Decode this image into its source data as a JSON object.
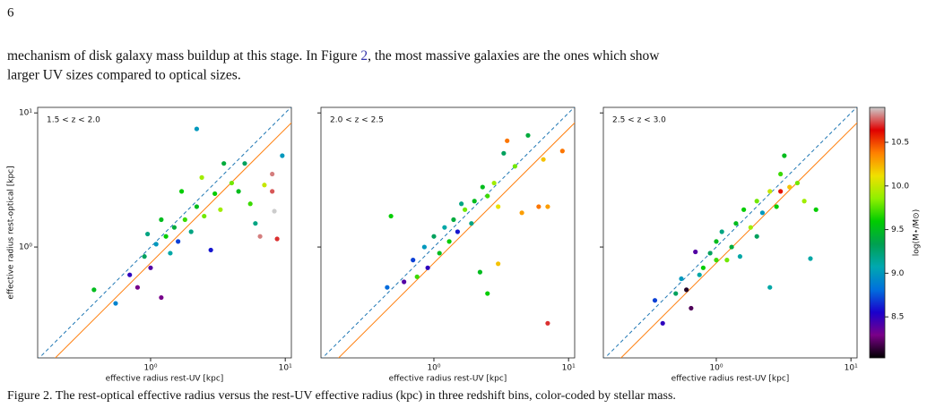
{
  "page_number": "6",
  "paragraph": {
    "before_link": "mechanism of disk galaxy mass buildup at this stage. In Figure ",
    "link": "2",
    "after_link": ", the most massive galaxies are the ones which show",
    "line2": "larger UV sizes compared to optical sizes."
  },
  "chart_data": [
    {
      "type": "scatter",
      "title": "1.5 < z < 2.0",
      "xlabel": "effective radius rest-UV [kpc]",
      "ylabel": "effective radius rest-optical [kpc]",
      "log": true,
      "xlim": [
        0.145,
        11.1
      ],
      "ylim": [
        0.149,
        11.0
      ],
      "xticks": [
        {
          "value": 1,
          "label": "10⁰"
        },
        {
          "value": 10,
          "label": "10¹"
        }
      ],
      "yticks": [
        {
          "value": 1,
          "label": "10⁰"
        },
        {
          "value": 10,
          "label": "10¹"
        }
      ],
      "reference_lines": [
        {
          "ratio": 1,
          "color": "#1f77b4",
          "dashed": true
        },
        {
          "ratio": 0.76,
          "color": "#ff7f0e",
          "dashed": false
        }
      ],
      "x": [
        0.38,
        0.55,
        0.7,
        0.8,
        0.9,
        1.0,
        1.1,
        1.2,
        1.3,
        1.4,
        1.5,
        1.6,
        1.8,
        2.0,
        2.2,
        2.2,
        2.5,
        2.8,
        3.0,
        3.3,
        3.5,
        4.0,
        4.5,
        5.0,
        5.5,
        6.0,
        6.5,
        7.0,
        8.0,
        8.0,
        8.3,
        8.7,
        9.5,
        1.7,
        2.4,
        1.2,
        0.95
      ],
      "y": [
        0.48,
        0.38,
        0.62,
        0.5,
        0.85,
        0.7,
        1.05,
        0.42,
        1.2,
        0.9,
        1.4,
        1.1,
        1.6,
        1.3,
        7.6,
        2.0,
        1.7,
        0.95,
        2.5,
        1.9,
        4.2,
        3.0,
        2.6,
        4.2,
        2.1,
        1.5,
        1.2,
        2.9,
        3.5,
        2.6,
        1.85,
        1.15,
        4.8,
        2.6,
        3.3,
        1.6,
        1.25
      ],
      "mass": [
        9.5,
        8.9,
        8.5,
        8.3,
        9.3,
        8.4,
        9.0,
        8.3,
        9.6,
        9.1,
        9.4,
        8.7,
        9.7,
        9.2,
        9.0,
        9.5,
        9.8,
        8.6,
        9.6,
        9.9,
        9.4,
        9.8,
        9.5,
        9.3,
        9.7,
        9.2,
        10.8,
        10.0,
        10.8,
        10.75,
        10.95,
        10.7,
        9.0,
        9.6,
        9.9,
        9.5,
        9.2
      ]
    },
    {
      "type": "scatter",
      "title": "2.0 < z < 2.5",
      "xlabel": "effective radius rest-UV [kpc]",
      "log": true,
      "xlim": [
        0.145,
        11.1
      ],
      "ylim": [
        0.149,
        11.0
      ],
      "xticks": [
        {
          "value": 1,
          "label": "10⁰"
        },
        {
          "value": 10,
          "label": "10¹"
        }
      ],
      "yticks": [
        1,
        10
      ],
      "reference_lines": [
        {
          "ratio": 1,
          "color": "#1f77b4",
          "dashed": true
        },
        {
          "ratio": 0.76,
          "color": "#ff7f0e",
          "dashed": false
        }
      ],
      "x": [
        0.45,
        0.48,
        0.6,
        0.7,
        0.75,
        0.85,
        0.9,
        1.0,
        1.1,
        1.2,
        1.3,
        1.4,
        1.5,
        1.7,
        1.9,
        2.0,
        2.2,
        2.5,
        2.5,
        2.8,
        3.0,
        3.3,
        3.5,
        3.0,
        4.0,
        4.5,
        5.0,
        6.0,
        7.0,
        7.0,
        9.0,
        6.5,
        2.3,
        1.6
      ],
      "y": [
        0.5,
        1.7,
        0.55,
        0.8,
        0.6,
        1.0,
        0.7,
        1.2,
        0.9,
        1.4,
        1.1,
        1.6,
        1.3,
        1.9,
        1.5,
        2.2,
        0.65,
        0.45,
        2.4,
        3.0,
        2.0,
        5.0,
        6.2,
        0.75,
        4.0,
        1.8,
        6.8,
        2.0,
        0.27,
        2.0,
        5.2,
        4.5,
        2.8,
        2.1
      ],
      "mass": [
        8.8,
        9.6,
        8.4,
        8.7,
        9.7,
        9.0,
        8.5,
        9.3,
        9.5,
        9.1,
        9.6,
        9.4,
        8.6,
        9.8,
        9.2,
        9.5,
        9.5,
        9.6,
        9.7,
        9.9,
        10.1,
        9.3,
        10.4,
        10.2,
        9.8,
        10.3,
        9.4,
        10.4,
        10.7,
        10.3,
        10.4,
        10.2,
        9.5,
        9.2
      ]
    },
    {
      "type": "scatter",
      "title": "2.5 < z < 3.0",
      "xlabel": "effective radius rest-UV [kpc]",
      "log": true,
      "xlim": [
        0.145,
        11.1
      ],
      "ylim": [
        0.149,
        11.0
      ],
      "xticks": [
        {
          "value": 1,
          "label": "10⁰"
        },
        {
          "value": 10,
          "label": "10¹"
        }
      ],
      "yticks": [
        1,
        10
      ],
      "reference_lines": [
        {
          "ratio": 1,
          "color": "#1f77b4",
          "dashed": true
        },
        {
          "ratio": 0.76,
          "color": "#ff7f0e",
          "dashed": false
        }
      ],
      "x": [
        0.35,
        0.4,
        0.5,
        0.55,
        0.6,
        0.65,
        0.7,
        0.75,
        0.8,
        0.9,
        1.0,
        1.0,
        1.1,
        1.2,
        1.3,
        1.4,
        1.5,
        1.6,
        1.8,
        2.0,
        2.2,
        2.5,
        2.5,
        2.8,
        3.0,
        3.0,
        3.2,
        3.5,
        4.0,
        4.5,
        5.0,
        5.5,
        2.0
      ],
      "y": [
        0.4,
        0.27,
        0.45,
        0.58,
        0.48,
        0.35,
        0.92,
        0.62,
        0.7,
        0.9,
        0.8,
        1.1,
        1.3,
        0.8,
        1.0,
        1.5,
        0.85,
        1.9,
        1.4,
        2.2,
        1.8,
        0.5,
        2.6,
        2.0,
        3.5,
        2.6,
        4.8,
        2.8,
        3.0,
        2.2,
        0.82,
        1.9,
        1.2
      ],
      "mass": [
        8.7,
        8.5,
        9.3,
        9.0,
        8.1,
        8.2,
        8.4,
        9.1,
        9.6,
        9.3,
        9.7,
        9.5,
        9.2,
        9.8,
        9.4,
        9.5,
        9.1,
        9.6,
        9.9,
        9.8,
        9.0,
        9.1,
        10.0,
        9.6,
        9.7,
        10.6,
        9.5,
        10.2,
        9.8,
        9.9,
        9.1,
        9.6,
        9.3
      ]
    }
  ],
  "colorbar": {
    "label": "log(M⋆/M⊙)",
    "clim": [
      8.03,
      10.9
    ],
    "ticks": [
      8.5,
      {
        "value": 9,
        "label": "9.0"
      },
      9.5,
      {
        "value": 10,
        "label": "10.0"
      },
      10.5
    ],
    "colormap_colors": [
      "#000000",
      "#7a0088",
      "#1a00cc",
      "#0070dd",
      "#00a8b0",
      "#00a050",
      "#00cc00",
      "#90f000",
      "#f0e000",
      "#ff8000",
      "#e00000",
      "#cccccc"
    ]
  },
  "caption": "Figure 2. The rest-optical effective radius versus the rest-UV effective radius (kpc) in three redshift bins, color-coded by stellar mass."
}
